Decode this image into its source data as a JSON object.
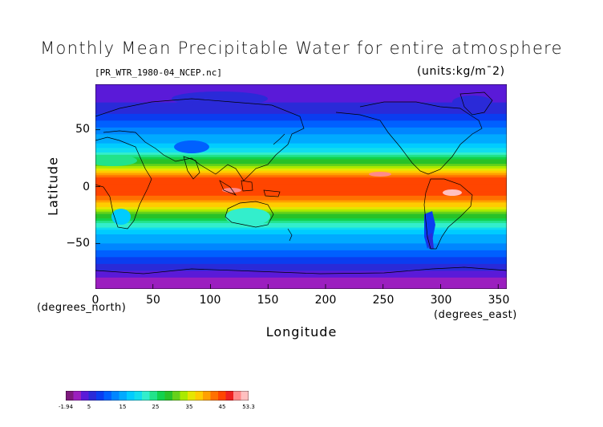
{
  "title": "Monthly Mean Precipitable Water for entire atmosphere",
  "file_info": "[PR_WTR_1980-04_NCEP.nc]",
  "units": "(units:kg/m¯2)",
  "axes": {
    "xlabel": "Longitude",
    "ylabel": "Latitude",
    "x_unit": "(degrees_east)",
    "y_unit": "(degrees_north)",
    "x_ticks": [
      "0",
      "50",
      "100",
      "150",
      "200",
      "250",
      "300",
      "350"
    ],
    "y_ticks": [
      "50",
      "0",
      "−50"
    ],
    "x_range": [
      0,
      357.5
    ],
    "y_range": [
      -90,
      90
    ]
  },
  "colorbar": {
    "min": -1.94,
    "max": 53.3,
    "tick_labels": [
      "-1.94",
      "5",
      "15",
      "25",
      "35",
      "45",
      "53.3"
    ],
    "colors": [
      "#7d1a7d",
      "#9b1fbf",
      "#5a1ad8",
      "#2a2ad8",
      "#0a3df0",
      "#0060ff",
      "#0086ff",
      "#00aaff",
      "#00ccff",
      "#11ddee",
      "#33eecc",
      "#22e38a",
      "#11d24d",
      "#28c228",
      "#66d11a",
      "#aaea00",
      "#e6e600",
      "#ffcc00",
      "#ffa000",
      "#ff7000",
      "#ff4500",
      "#ee2020",
      "#ff8a8a",
      "#ffc0c0"
    ]
  },
  "chart_data": {
    "type": "heatmap",
    "title": "Monthly Mean Precipitable Water for entire atmosphere",
    "xlabel": "Longitude",
    "ylabel": "Latitude",
    "xlim": [
      0,
      357.5
    ],
    "ylim": [
      -90,
      90
    ],
    "value_range": [
      -1.94,
      53.3
    ],
    "zonal_profile": {
      "latitude": [
        90,
        80,
        70,
        60,
        50,
        40,
        30,
        20,
        10,
        0,
        -10,
        -20,
        -30,
        -40,
        -50,
        -60,
        -70,
        -80,
        -90
      ],
      "value": [
        3,
        4,
        6,
        9,
        13,
        16,
        22,
        32,
        44,
        46,
        43,
        34,
        24,
        17,
        14,
        10,
        6,
        2,
        0
      ]
    }
  }
}
